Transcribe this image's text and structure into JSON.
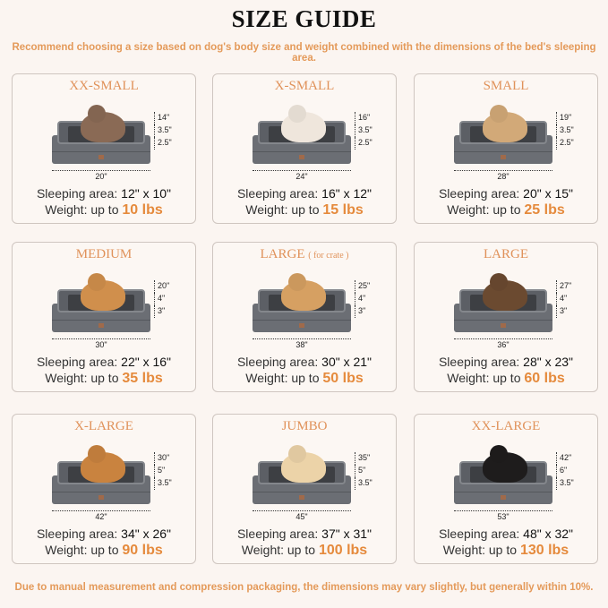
{
  "title": "SIZE GUIDE",
  "subtitle": "Recommend choosing a size based on dog's body size and weight combined with the dimensions of the bed's sleeping area.",
  "footer": "Due to manual measurement and compression packaging, the dimensions may vary slightly, but generally within 10%.",
  "labels": {
    "sleeping_area": "Sleeping area: ",
    "weight": "Weight: up to "
  },
  "colors": {
    "accent": "#e58a3c",
    "title_orange": "#e0925a",
    "background": "#fbf5f1",
    "bed_gray": "#6b6e74"
  },
  "sizes": [
    {
      "name": "XX-SMALL",
      "note": "",
      "height": "14\"",
      "top": "3.5\"",
      "base": "2.5\"",
      "width": "20\"",
      "sleeping_area": "12\" x 10\"",
      "weight": "10 lbs",
      "pet": "cat",
      "pet_color": "#8a6a55"
    },
    {
      "name": "X-SMALL",
      "note": "",
      "height": "16\"",
      "top": "3.5\"",
      "base": "2.5\"",
      "width": "24\"",
      "sleeping_area": "16\" x 12\"",
      "weight": "15 lbs",
      "pet": "dog",
      "pet_color": "#efe6dc"
    },
    {
      "name": "SMALL",
      "note": "",
      "height": "19\"",
      "top": "3.5\"",
      "base": "2.5\"",
      "width": "28\"",
      "sleeping_area": "20\" x 15\"",
      "weight": "25 lbs",
      "pet": "dog",
      "pet_color": "#d2a978"
    },
    {
      "name": "MEDIUM",
      "note": "",
      "height": "20\"",
      "top": "4\"",
      "base": "3\"",
      "width": "30\"",
      "sleeping_area": "22\" x 16\"",
      "weight": "35 lbs",
      "pet": "dog",
      "pet_color": "#d08f4c"
    },
    {
      "name": "LARGE",
      "note": "( for crate )",
      "height": "25\"",
      "top": "4\"",
      "base": "3\"",
      "width": "38\"",
      "sleeping_area": "30\" x 21\"",
      "weight": "50 lbs",
      "pet": "dog",
      "pet_color": "#d6a062"
    },
    {
      "name": "LARGE",
      "note": "",
      "height": "27\"",
      "top": "4\"",
      "base": "3\"",
      "width": "36\"",
      "sleeping_area": "28\" x 23\"",
      "weight": "60 lbs",
      "pet": "dog",
      "pet_color": "#6b4a30"
    },
    {
      "name": "X-LARGE",
      "note": "",
      "height": "30\"",
      "top": "5\"",
      "base": "3.5\"",
      "width": "42\"",
      "sleeping_area": "34\" x 26\"",
      "weight": "90 lbs",
      "pet": "dog",
      "pet_color": "#c9833f"
    },
    {
      "name": "JUMBO",
      "note": "",
      "height": "35\"",
      "top": "5\"",
      "base": "3.5\"",
      "width": "45\"",
      "sleeping_area": "37\" x 31\"",
      "weight": "100 lbs",
      "pet": "dog",
      "pet_color": "#ecd3a8"
    },
    {
      "name": "XX-LARGE",
      "note": "",
      "height": "42\"",
      "top": "6\"",
      "base": "3.5\"",
      "width": "53\"",
      "sleeping_area": "48\" x 32\"",
      "weight": "130 lbs",
      "pet": "dog",
      "pet_color": "#1e1c1c"
    }
  ]
}
